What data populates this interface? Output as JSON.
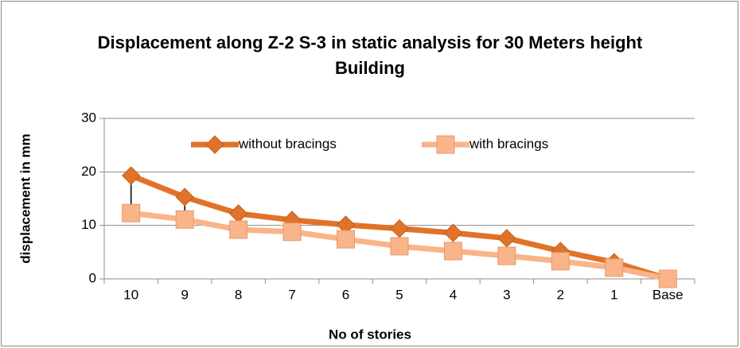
{
  "chart_data": {
    "type": "line",
    "title": "Displacement along Z-2 S-3 in static analysis  for 30 Meters height  Building",
    "x_label": "No of stories",
    "y_label": "displacement in mm",
    "categories": [
      "10",
      "9",
      "8",
      "7",
      "6",
      "5",
      "4",
      "3",
      "2",
      "1",
      "Base"
    ],
    "series": [
      {
        "name": "without bracings",
        "color": "#e07328",
        "marker": "diamond",
        "values": [
          19.3,
          15.3,
          12.2,
          11.0,
          10.1,
          9.4,
          8.6,
          7.6,
          5.2,
          3.1,
          0
        ]
      },
      {
        "name": "with bracings",
        "color": "#f9b48a",
        "marker": "square",
        "values": [
          12.3,
          11.1,
          9.2,
          8.8,
          7.4,
          6.1,
          5.2,
          4.3,
          3.3,
          2.1,
          0
        ]
      }
    ],
    "high_low_lines": true,
    "ylim": [
      0,
      30
    ],
    "yticks": [
      0,
      10,
      20,
      30
    ],
    "grid": true,
    "legend": "top"
  }
}
